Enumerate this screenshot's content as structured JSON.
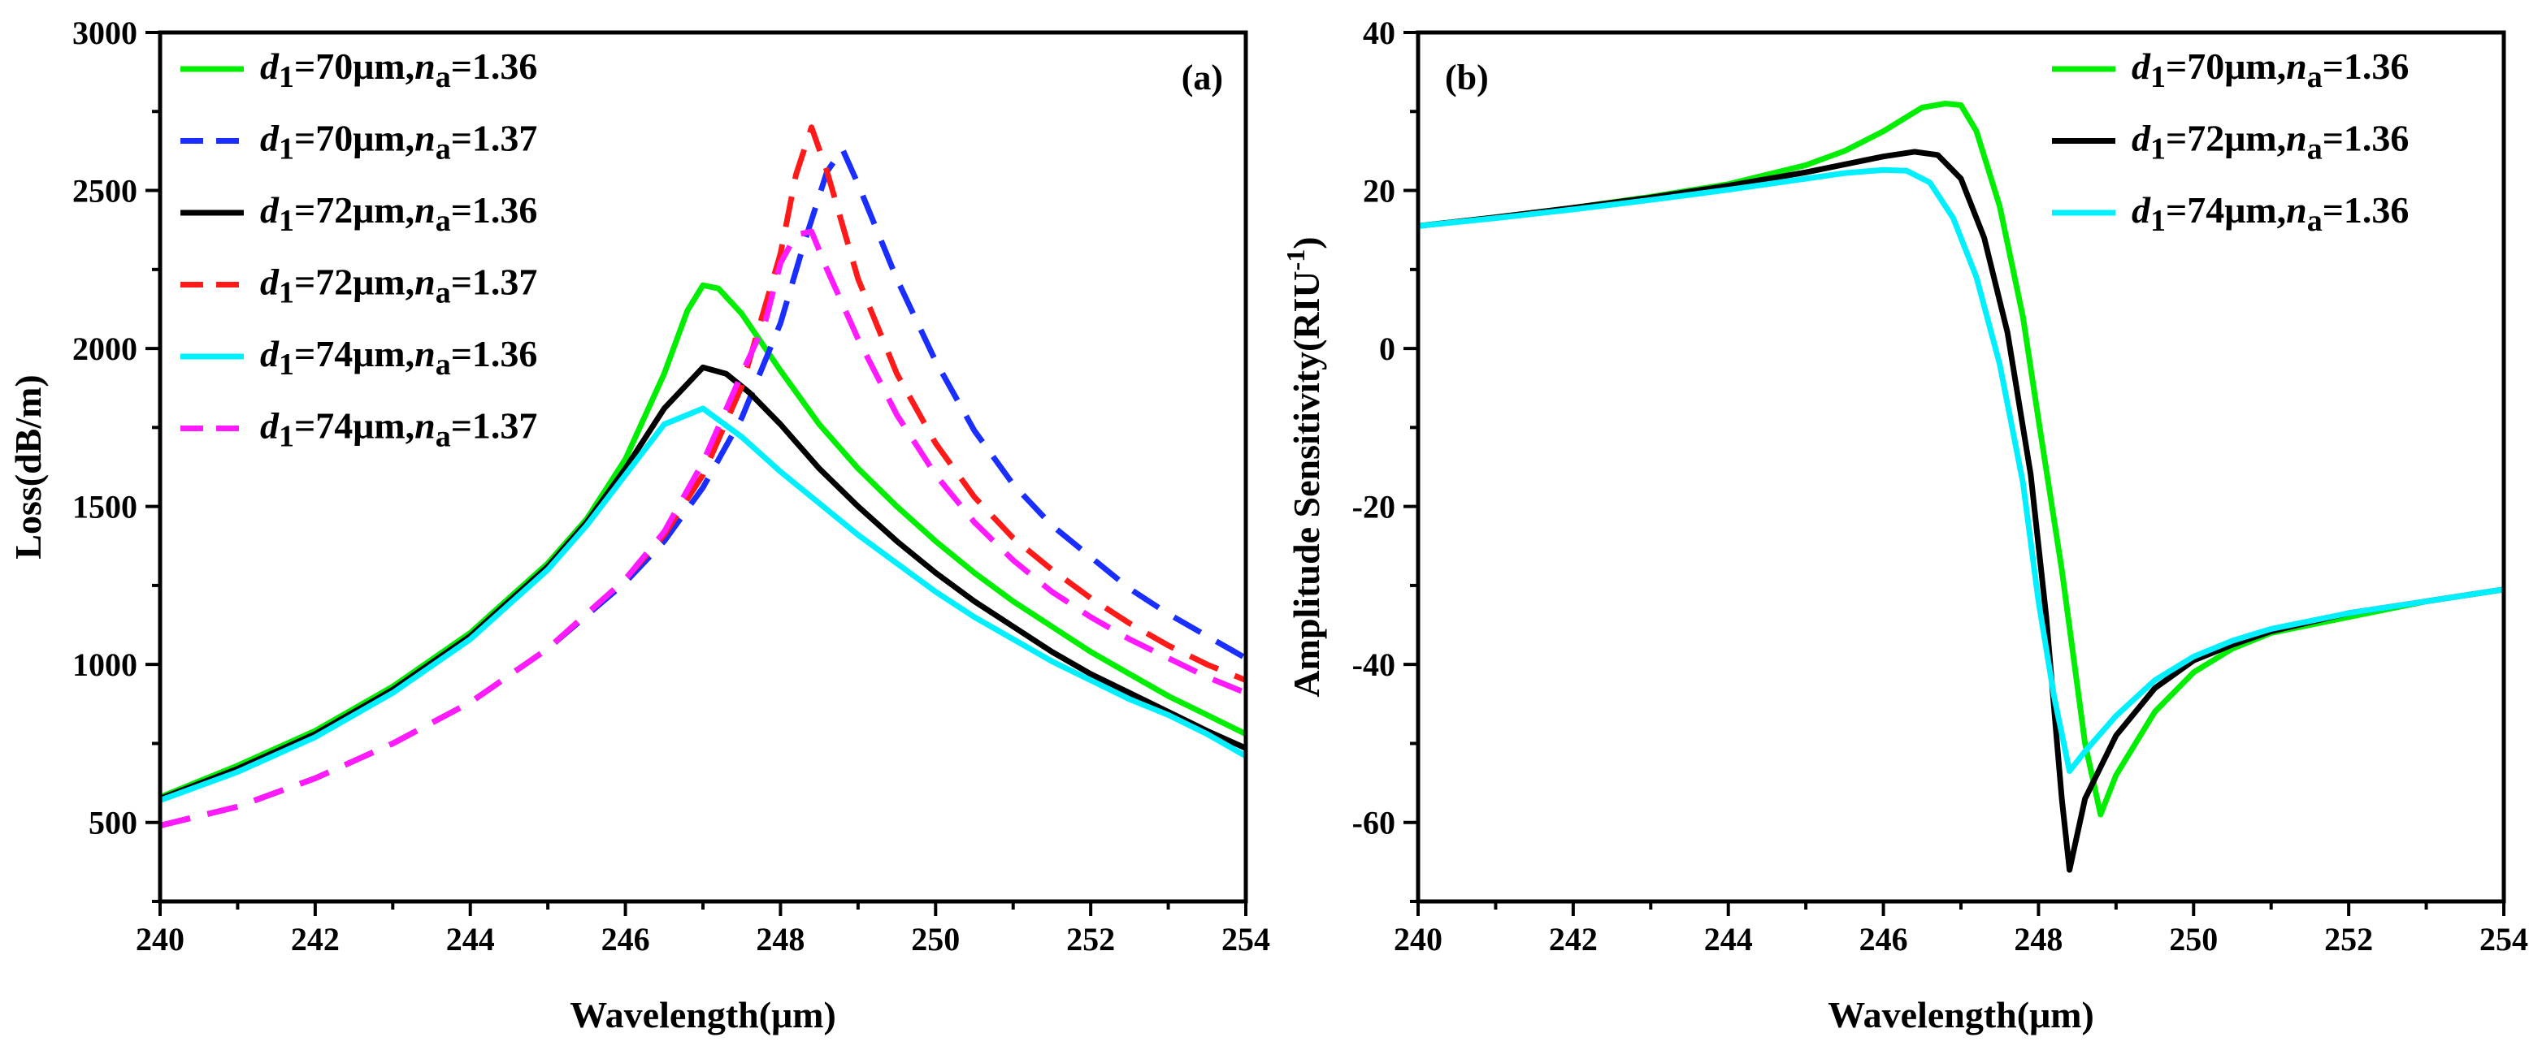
{
  "chart_data": [
    {
      "type": "line",
      "panel_label": "(a)",
      "xlabel": "Wavelength(μm)",
      "ylabel": "Loss(dB/m)",
      "xlim": [
        240,
        254
      ],
      "ylim": [
        250,
        3000
      ],
      "xticks": [
        240,
        242,
        244,
        246,
        248,
        250,
        252,
        254
      ],
      "yticks": [
        500,
        1000,
        1500,
        2000,
        2500,
        3000
      ],
      "legend_position": "top-left",
      "series": [
        {
          "name": "d1=70μm,na=1.36",
          "legend": {
            "d": "d",
            "d_sub": "1",
            "mid": "=70μm,",
            "n": "n",
            "n_sub": "a",
            "tail": "=1.36"
          },
          "color": "#00ee00",
          "dash": "solid",
          "x": [
            240,
            241,
            242,
            243,
            244,
            245,
            245.5,
            246,
            246.5,
            246.8,
            247,
            247.2,
            247.5,
            248,
            248.5,
            249,
            249.5,
            250,
            250.5,
            251,
            251.5,
            252,
            252.5,
            253,
            253.5,
            254
          ],
          "y": [
            580,
            680,
            790,
            930,
            1100,
            1320,
            1460,
            1650,
            1920,
            2120,
            2200,
            2190,
            2110,
            1930,
            1760,
            1620,
            1500,
            1390,
            1290,
            1200,
            1120,
            1040,
            970,
            900,
            840,
            780
          ]
        },
        {
          "name": "d1=70μm,na=1.37",
          "legend": {
            "d": "d",
            "d_sub": "1",
            "mid": "=70μm,",
            "n": "n",
            "n_sub": "a",
            "tail": "=1.37"
          },
          "color": "#1a2fff",
          "dash": "dashed",
          "x": [
            240,
            241,
            242,
            243,
            244,
            245,
            246,
            246.5,
            247,
            247.5,
            248,
            248.3,
            248.6,
            248.8,
            249,
            249.5,
            250,
            250.5,
            251,
            251.5,
            252,
            252.5,
            253,
            253.5,
            254
          ],
          "y": [
            490,
            550,
            640,
            750,
            880,
            1050,
            1260,
            1390,
            1560,
            1780,
            2080,
            2330,
            2560,
            2630,
            2520,
            2220,
            1960,
            1740,
            1570,
            1440,
            1340,
            1240,
            1160,
            1090,
            1020
          ]
        },
        {
          "name": "d1=72μm,na=1.36",
          "legend": {
            "d": "d",
            "d_sub": "1",
            "mid": "=72μm,",
            "n": "n",
            "n_sub": "a",
            "tail": "=1.36"
          },
          "color": "#000000",
          "dash": "solid",
          "x": [
            240,
            241,
            242,
            243,
            244,
            245,
            245.5,
            246,
            246.5,
            247,
            247.3,
            247.6,
            248,
            248.5,
            249,
            249.5,
            250,
            250.5,
            251,
            251.5,
            252,
            252.5,
            253,
            253.5,
            254
          ],
          "y": [
            575,
            670,
            780,
            920,
            1090,
            1310,
            1450,
            1620,
            1810,
            1940,
            1920,
            1860,
            1760,
            1620,
            1500,
            1390,
            1290,
            1200,
            1120,
            1040,
            970,
            910,
            850,
            790,
            735
          ]
        },
        {
          "name": "d1=72μm,na=1.37",
          "legend": {
            "d": "d",
            "d_sub": "1",
            "mid": "=72μm,",
            "n": "n",
            "n_sub": "a",
            "tail": "=1.37"
          },
          "color": "#ff1a1a",
          "dash": "dashed",
          "x": [
            240,
            241,
            242,
            243,
            244,
            245,
            246,
            246.5,
            247,
            247.5,
            248,
            248.2,
            248.4,
            248.6,
            249,
            249.5,
            250,
            250.5,
            251,
            251.5,
            252,
            252.5,
            253,
            253.5,
            254
          ],
          "y": [
            490,
            550,
            640,
            750,
            880,
            1050,
            1270,
            1410,
            1600,
            1880,
            2300,
            2550,
            2700,
            2560,
            2220,
            1920,
            1700,
            1530,
            1400,
            1300,
            1210,
            1130,
            1060,
            1000,
            950
          ]
        },
        {
          "name": "d1=74μm,na=1.36",
          "legend": {
            "d": "d",
            "d_sub": "1",
            "mid": "=74μm,",
            "n": "n",
            "n_sub": "a",
            "tail": "=1.36"
          },
          "color": "#00f0ff",
          "dash": "solid",
          "x": [
            240,
            241,
            242,
            243,
            244,
            245,
            245.5,
            246,
            246.5,
            247,
            247.5,
            248,
            248.5,
            249,
            249.5,
            250,
            250.5,
            251,
            251.5,
            252,
            252.5,
            253,
            253.5,
            254
          ],
          "y": [
            570,
            660,
            770,
            910,
            1080,
            1300,
            1440,
            1600,
            1760,
            1810,
            1720,
            1610,
            1510,
            1410,
            1320,
            1230,
            1150,
            1080,
            1010,
            950,
            890,
            840,
            780,
            710
          ]
        },
        {
          "name": "d1=74μm,na=1.37",
          "legend": {
            "d": "d",
            "d_sub": "1",
            "mid": "=74μm,",
            "n": "n",
            "n_sub": "a",
            "tail": "=1.37"
          },
          "color": "#ff1aff",
          "dash": "dashed",
          "x": [
            240,
            241,
            242,
            243,
            244,
            245,
            246,
            246.5,
            247,
            247.5,
            247.8,
            248,
            248.2,
            248.4,
            248.6,
            249,
            249.5,
            250,
            250.5,
            251,
            251.5,
            252,
            252.5,
            253,
            253.5,
            254
          ],
          "y": [
            490,
            550,
            640,
            750,
            880,
            1050,
            1270,
            1420,
            1640,
            1920,
            2080,
            2270,
            2360,
            2370,
            2250,
            2030,
            1790,
            1600,
            1450,
            1330,
            1230,
            1150,
            1080,
            1020,
            960,
            910
          ]
        }
      ]
    },
    {
      "type": "line",
      "panel_label": "(b)",
      "xlabel": "Wavelength(μm)",
      "ylabel": "Amplitude Sensitivity(RIU",
      "ylabel_sup": "-1",
      "ylabel_close": ")",
      "xlim": [
        240,
        254
      ],
      "ylim": [
        -70,
        40
      ],
      "xticks": [
        240,
        242,
        244,
        246,
        248,
        250,
        252,
        254
      ],
      "yticks": [
        -60,
        -40,
        -20,
        0,
        20,
        40
      ],
      "legend_position": "top-right",
      "series": [
        {
          "name": "d1=70μm,na=1.36",
          "legend": {
            "d": "d",
            "d_sub": "1",
            "mid": "=70μm,",
            "n": "n",
            "n_sub": "a",
            "tail": "=1.36"
          },
          "color": "#00ee00",
          "dash": "solid",
          "x": [
            240,
            241,
            242,
            243,
            244,
            245,
            245.5,
            246,
            246.5,
            246.8,
            247,
            247.2,
            247.5,
            247.8,
            248,
            248.3,
            248.6,
            248.8,
            249,
            249.5,
            250,
            250.5,
            251,
            252,
            253,
            254
          ],
          "y": [
            15.5,
            16.6,
            17.8,
            19.2,
            20.8,
            23.2,
            25,
            27.5,
            30.5,
            31,
            30.8,
            27.5,
            18,
            4,
            -9,
            -28,
            -50,
            -59,
            -54,
            -46,
            -41,
            -38,
            -36,
            -34,
            -32,
            -30.5
          ]
        },
        {
          "name": "d1=72μm,na=1.36",
          "legend": {
            "d": "d",
            "d_sub": "1",
            "mid": "=72μm,",
            "n": "n",
            "n_sub": "a",
            "tail": "=1.36"
          },
          "color": "#000000",
          "dash": "solid",
          "x": [
            240,
            241,
            242,
            243,
            244,
            245,
            245.5,
            246,
            246.4,
            246.7,
            247,
            247.3,
            247.6,
            247.9,
            248.1,
            248.3,
            248.4,
            248.6,
            249,
            249.5,
            250,
            250.5,
            251,
            252,
            253,
            254
          ],
          "y": [
            15.5,
            16.6,
            17.8,
            19.1,
            20.6,
            22.3,
            23.3,
            24.3,
            24.9,
            24.5,
            21.5,
            14,
            2,
            -16,
            -34,
            -57,
            -66,
            -57,
            -49,
            -43,
            -39.5,
            -37.5,
            -35.8,
            -33.5,
            -32,
            -30.5
          ]
        },
        {
          "name": "d1=74μm,na=1.36",
          "legend": {
            "d": "d",
            "d_sub": "1",
            "mid": "=74μm,",
            "n": "n",
            "n_sub": "a",
            "tail": "=1.36"
          },
          "color": "#00f0ff",
          "dash": "solid",
          "x": [
            240,
            241,
            242,
            243,
            244,
            245,
            245.5,
            246,
            246.3,
            246.6,
            246.9,
            247.2,
            247.5,
            247.8,
            248,
            248.2,
            248.4,
            248.6,
            249,
            249.5,
            250,
            250.5,
            251,
            252,
            253,
            254
          ],
          "y": [
            15.5,
            16.5,
            17.6,
            18.8,
            20.1,
            21.5,
            22.2,
            22.6,
            22.5,
            21,
            16.5,
            9,
            -2,
            -17,
            -32,
            -44,
            -53.5,
            -51,
            -46.5,
            -42,
            -39,
            -37,
            -35.5,
            -33.5,
            -32,
            -30.5
          ]
        }
      ]
    }
  ]
}
